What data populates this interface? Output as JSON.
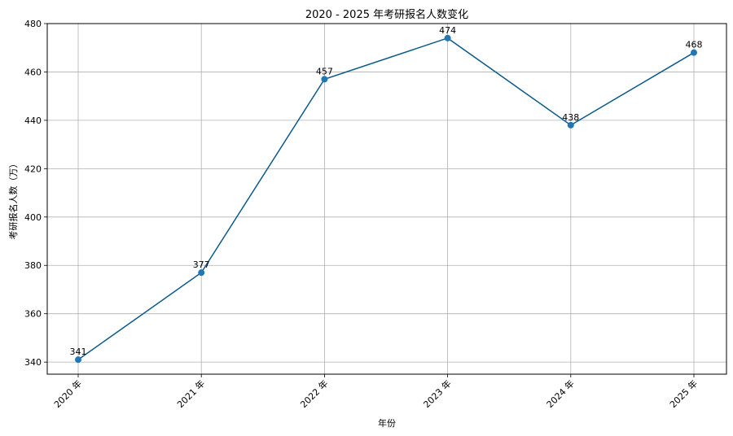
{
  "chart_data": {
    "type": "line",
    "title": "2020 - 2025 年考研报名人数变化",
    "xlabel": "年份",
    "ylabel": "考研报名人数（万）",
    "categories": [
      "2020 年",
      "2021 年",
      "2022 年",
      "2023 年",
      "2024 年",
      "2025 年"
    ],
    "series": [
      {
        "values": [
          341,
          377,
          457,
          474,
          438,
          468
        ]
      }
    ],
    "data_labels": [
      "341",
      "377",
      "457",
      "474",
      "438",
      "468"
    ],
    "ylim": [
      335,
      480
    ],
    "yticks": [
      340,
      360,
      380,
      400,
      420,
      440,
      460,
      480
    ],
    "grid": true,
    "line_color": "#0b5a8e",
    "marker_color": "#1f77b4",
    "x_tick_rotation_deg": 45
  }
}
